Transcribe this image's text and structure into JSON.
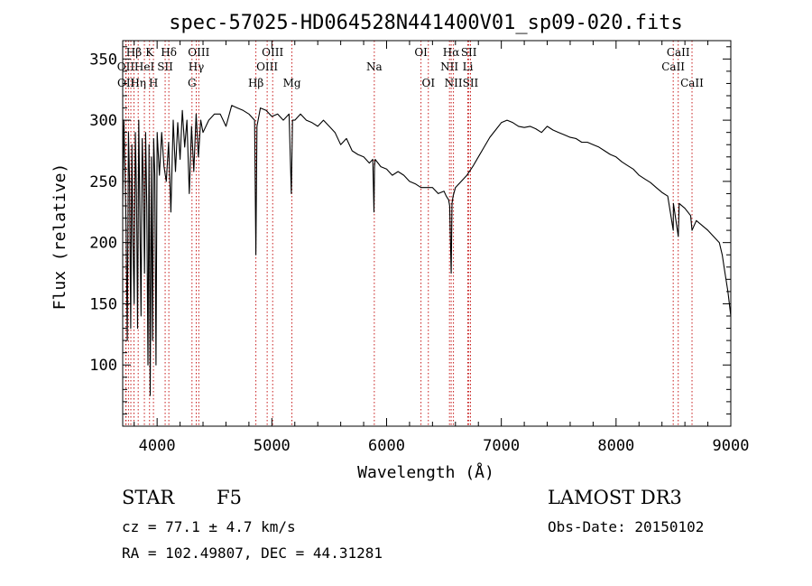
{
  "chart_data": {
    "type": "line",
    "title": "spec-57025-HD064528N441400V01_sp09-020.fits",
    "xlabel": "Wavelength (Å)",
    "ylabel": "Flux (relative)",
    "xlim": [
      3700,
      9000
    ],
    "ylim": [
      50,
      365
    ],
    "xticks": [
      4000,
      5000,
      6000,
      7000,
      8000,
      9000
    ],
    "yticks": [
      100,
      150,
      200,
      250,
      300,
      350
    ],
    "grid": false,
    "series": [
      {
        "x": [
          3700,
          3710,
          3720,
          3730,
          3740,
          3750,
          3760,
          3770,
          3780,
          3790,
          3800,
          3810,
          3820,
          3830,
          3840,
          3850,
          3860,
          3870,
          3880,
          3890,
          3900,
          3910,
          3920,
          3930,
          3940,
          3950,
          3960,
          3970,
          3980,
          3990,
          4000,
          4020,
          4040,
          4060,
          4080,
          4100,
          4120,
          4140,
          4160,
          4180,
          4200,
          4220,
          4240,
          4260,
          4280,
          4300,
          4320,
          4340,
          4360,
          4380,
          4400,
          4450,
          4500,
          4550,
          4600,
          4650,
          4700,
          4750,
          4800,
          4850,
          4861,
          4870,
          4900,
          4950,
          5000,
          5050,
          5100,
          5150,
          5170,
          5180,
          5200,
          5250,
          5300,
          5350,
          5400,
          5450,
          5500,
          5550,
          5600,
          5650,
          5700,
          5750,
          5800,
          5850,
          5880,
          5890,
          5895,
          5900,
          5950,
          6000,
          6050,
          6100,
          6150,
          6200,
          6250,
          6300,
          6350,
          6400,
          6450,
          6500,
          6520,
          6540,
          6550,
          6563,
          6570,
          6580,
          6600,
          6650,
          6700,
          6750,
          6800,
          6850,
          6900,
          6950,
          7000,
          7050,
          7100,
          7150,
          7200,
          7250,
          7300,
          7350,
          7400,
          7450,
          7500,
          7550,
          7600,
          7650,
          7700,
          7750,
          7800,
          7850,
          7900,
          7950,
          8000,
          8050,
          8100,
          8150,
          8200,
          8250,
          8300,
          8350,
          8400,
          8450,
          8498,
          8500,
          8542,
          8550,
          8600,
          8650,
          8662,
          8700,
          8750,
          8800,
          8850,
          8900,
          8925,
          8950,
          8975,
          9000
        ],
        "values": [
          230,
          300,
          260,
          210,
          120,
          290,
          250,
          130,
          280,
          200,
          150,
          290,
          240,
          130,
          300,
          220,
          140,
          285,
          250,
          175,
          290,
          230,
          100,
          280,
          75,
          270,
          120,
          285,
          255,
          100,
          290,
          255,
          290,
          262,
          250,
          282,
          225,
          300,
          258,
          298,
          268,
          308,
          278,
          300,
          240,
          295,
          258,
          305,
          270,
          300,
          290,
          300,
          305,
          305,
          295,
          312,
          310,
          308,
          305,
          300,
          190,
          295,
          310,
          308,
          303,
          305,
          300,
          305,
          240,
          300,
          300,
          305,
          300,
          298,
          295,
          300,
          295,
          290,
          280,
          285,
          275,
          272,
          270,
          265,
          268,
          225,
          262,
          268,
          262,
          260,
          255,
          258,
          255,
          250,
          248,
          245,
          245,
          245,
          240,
          242,
          238,
          235,
          230,
          175,
          232,
          238,
          245,
          250,
          255,
          262,
          270,
          278,
          286,
          292,
          298,
          300,
          298,
          295,
          294,
          295,
          293,
          290,
          295,
          292,
          290,
          288,
          286,
          285,
          282,
          282,
          280,
          278,
          275,
          272,
          270,
          266,
          263,
          260,
          255,
          252,
          249,
          245,
          241,
          238,
          210,
          232,
          205,
          232,
          228,
          222,
          210,
          218,
          214,
          210,
          205,
          200,
          190,
          175,
          160,
          140
        ]
      }
    ],
    "line_labels": [
      {
        "text": "Hβ",
        "x": 3798,
        "row": 1
      },
      {
        "text": "K",
        "x": 3934,
        "row": 1
      },
      {
        "text": "Hδ",
        "x": 4102,
        "row": 1
      },
      {
        "text": "OIII",
        "x": 4363,
        "row": 1
      },
      {
        "text": "OIII",
        "x": 5007,
        "row": 1
      },
      {
        "text": "OI",
        "x": 6300,
        "row": 1
      },
      {
        "text": "Hα",
        "x": 6563,
        "row": 1
      },
      {
        "text": "SII",
        "x": 6717,
        "row": 1
      },
      {
        "text": "CaII",
        "x": 8542,
        "row": 1
      },
      {
        "text": "OII",
        "x": 3727,
        "row": 2
      },
      {
        "text": "HeI",
        "x": 3889,
        "row": 2
      },
      {
        "text": "SII",
        "x": 4070,
        "row": 2
      },
      {
        "text": "Hγ",
        "x": 4341,
        "row": 2
      },
      {
        "text": "OIII",
        "x": 4959,
        "row": 2
      },
      {
        "text": "Na",
        "x": 5893,
        "row": 2
      },
      {
        "text": "NII",
        "x": 6548,
        "row": 2
      },
      {
        "text": "Li",
        "x": 6708,
        "row": 2
      },
      {
        "text": "CaII",
        "x": 8498,
        "row": 2
      },
      {
        "text": "OII",
        "x": 3729,
        "row": 3
      },
      {
        "text": "Hη",
        "x": 3835,
        "row": 3
      },
      {
        "text": "H",
        "x": 3968,
        "row": 3
      },
      {
        "text": "G",
        "x": 4304,
        "row": 3
      },
      {
        "text": "Hβ",
        "x": 4861,
        "row": 3
      },
      {
        "text": "Mg",
        "x": 5175,
        "row": 3
      },
      {
        "text": "OI",
        "x": 6364,
        "row": 3
      },
      {
        "text": "NII",
        "x": 6583,
        "row": 3
      },
      {
        "text": "SII",
        "x": 6731,
        "row": 3
      },
      {
        "text": "CaII",
        "x": 8662,
        "row": 3
      }
    ],
    "marker_lines": [
      3727,
      3729,
      3750,
      3771,
      3798,
      3835,
      3889,
      3934,
      3968,
      4070,
      4102,
      4304,
      4341,
      4363,
      4861,
      4959,
      5007,
      5175,
      5893,
      6300,
      6364,
      6548,
      6563,
      6583,
      6708,
      6717,
      6731,
      8498,
      8542,
      8662
    ]
  },
  "info": {
    "object_class": "STAR",
    "subclass": "F5",
    "survey": "LAMOST DR3",
    "cz_text": "cz = 77.1 ± 4.7 km/s",
    "obs_date_text": "Obs-Date: 20150102",
    "radec_text": "RA = 102.49807, DEC =  44.31281"
  },
  "colors": {
    "spectrum": "#000000",
    "marker": "#c00000",
    "axis": "#000000"
  }
}
